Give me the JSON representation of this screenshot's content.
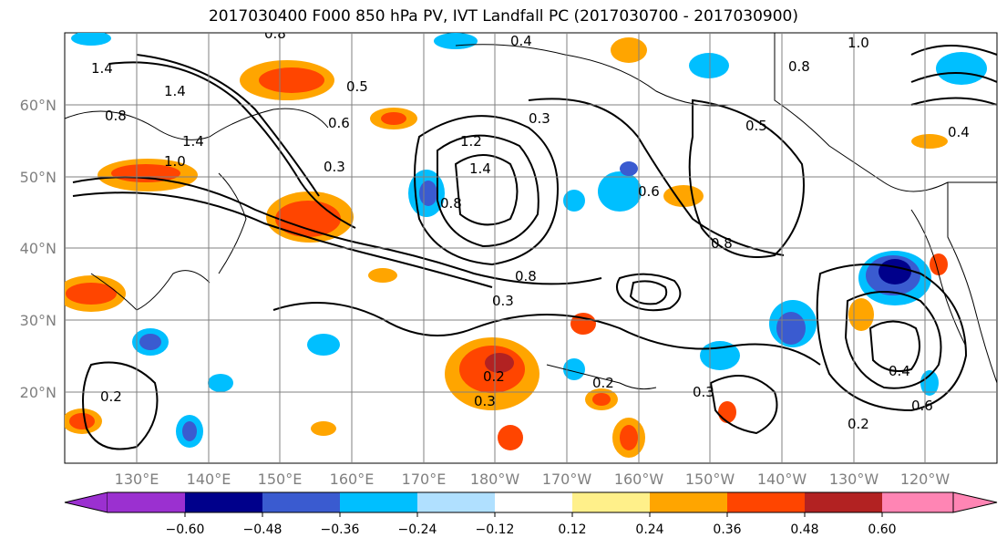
{
  "title": "2017030400 F000 850 hPa PV, IVT Landfall PC (2017030700 - 2017030900)",
  "map": {
    "lat_labels": [
      "60°N",
      "50°N",
      "40°N",
      "30°N",
      "20°N"
    ],
    "lon_labels": [
      "130°E",
      "140°E",
      "150°E",
      "160°E",
      "170°E",
      "180°W",
      "170°W",
      "160°W",
      "150°W",
      "140°W",
      "130°W",
      "120°W"
    ],
    "contour_labels": [
      "1.4",
      "1.4",
      "1.0",
      "1.4",
      "0.8",
      "0.8",
      "0.5",
      "0.6",
      "0.3",
      "1.2",
      "1.4",
      "0.8",
      "0.8",
      "0.8",
      "0.3",
      "0.3",
      "0.2",
      "0.2",
      "0.2",
      "0.3",
      "0.3",
      "0.4",
      "0.6",
      "0.2",
      "0.4",
      "0.5",
      "1.0",
      "0.8",
      "0.6",
      "0.4"
    ],
    "land_color": "#000000",
    "grid_color": "#808080",
    "contour_color": "#000000"
  },
  "colorbar": {
    "tick_labels": [
      "−0.60",
      "−0.48",
      "−0.36",
      "−0.24",
      "−0.12",
      "0.12",
      "0.24",
      "0.36",
      "0.48",
      "0.60"
    ],
    "colors": [
      "#9b30d0",
      "#00008b",
      "#3a5bd0",
      "#00bfff",
      "#b0e0ff",
      "#ffffff",
      "#fff08a",
      "#ffa500",
      "#ff4500",
      "#b22222",
      "#ff85b4"
    ]
  }
}
